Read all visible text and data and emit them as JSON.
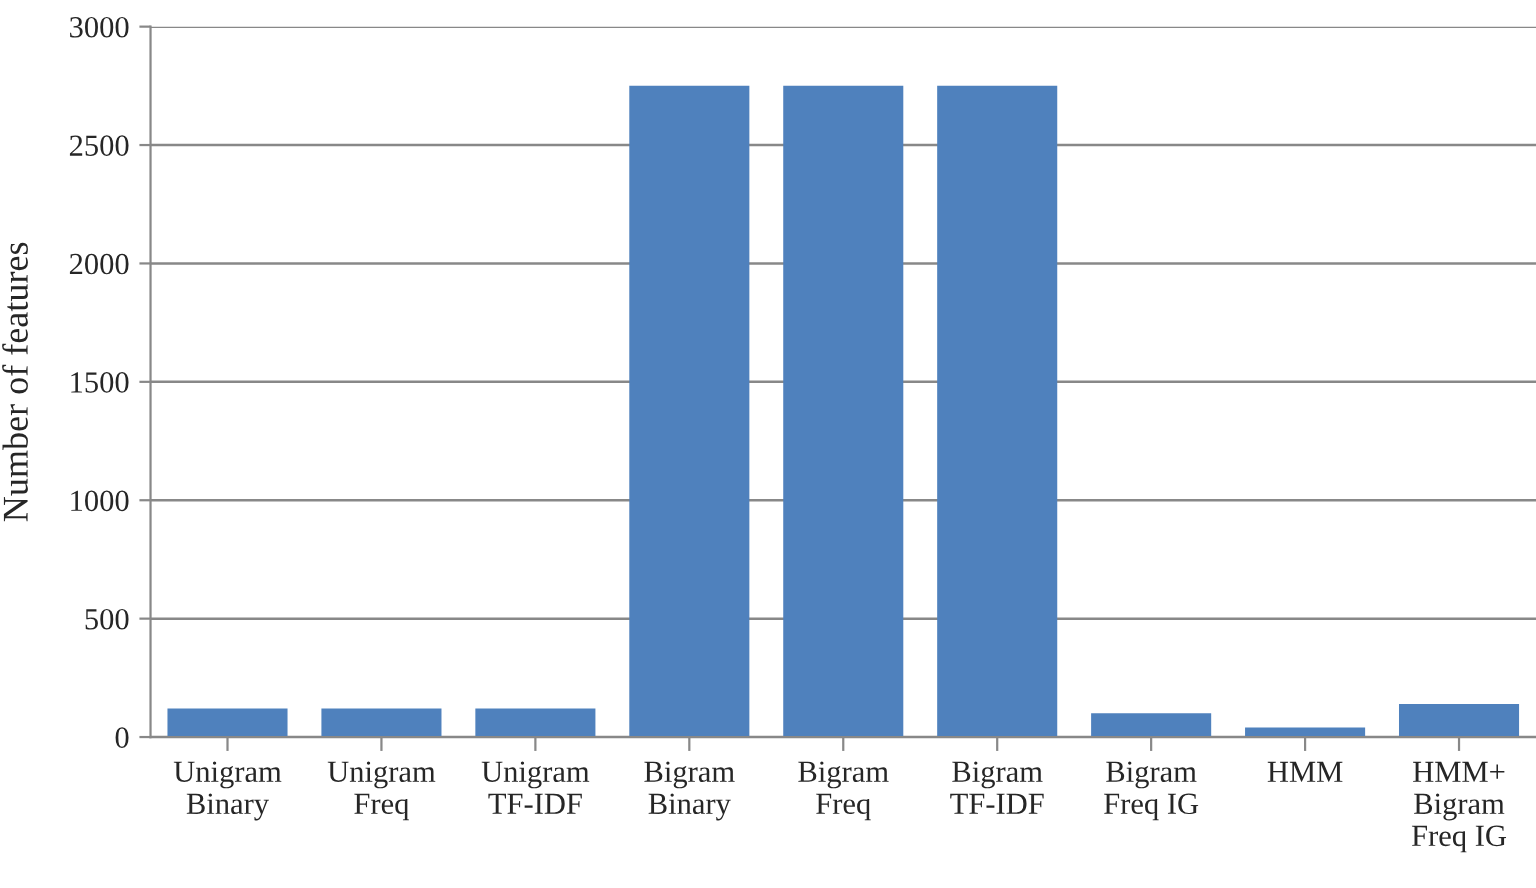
{
  "chart_data": {
    "type": "bar",
    "ylabel": "Number of features",
    "categories": [
      "Unigram\nBinary",
      "Unigram\nFreq",
      "Unigram\nTF-IDF",
      "Bigram\nBinary",
      "Bigram\nFreq",
      "Bigram\nTF-IDF",
      "Bigram\nFreq IG",
      "HMM",
      "HMM+\nBigram\nFreq IG"
    ],
    "values": [
      120,
      120,
      120,
      2750,
      2750,
      2750,
      100,
      40,
      140
    ],
    "color": "#4f81bd",
    "ylim": [
      0,
      3000
    ],
    "yticks": [
      0,
      500,
      1000,
      1500,
      2000,
      2500,
      3000
    ],
    "grid": "y"
  }
}
